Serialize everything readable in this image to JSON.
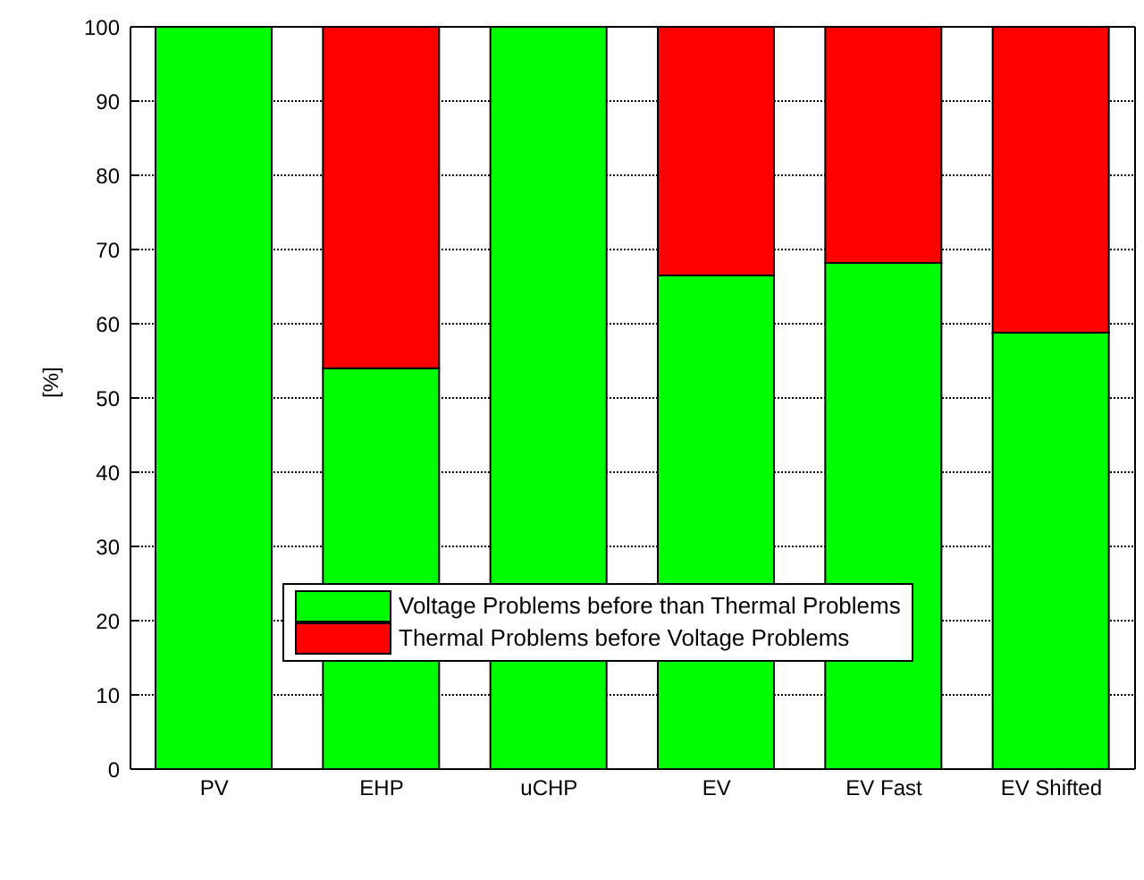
{
  "chart_data": {
    "type": "bar",
    "stacked": true,
    "ylabel": "[%]",
    "categories": [
      "PV",
      "EHP",
      "uCHP",
      "EV",
      "EV Fast",
      "EV Shifted"
    ],
    "series": [
      {
        "name": "Voltage Problems before than Thermal Problems",
        "color": "#00ff00",
        "values": [
          100,
          54,
          100,
          66.5,
          68.2,
          58.8
        ]
      },
      {
        "name": "Thermal Problems before Voltage Problems",
        "color": "#ff0000",
        "values": [
          0,
          46,
          0,
          33.5,
          31.8,
          41.2
        ]
      }
    ],
    "ylim": [
      0,
      100
    ],
    "yticks": [
      0,
      10,
      20,
      30,
      40,
      50,
      60,
      70,
      80,
      90,
      100
    ],
    "grid": "y",
    "legend": "bottom"
  }
}
